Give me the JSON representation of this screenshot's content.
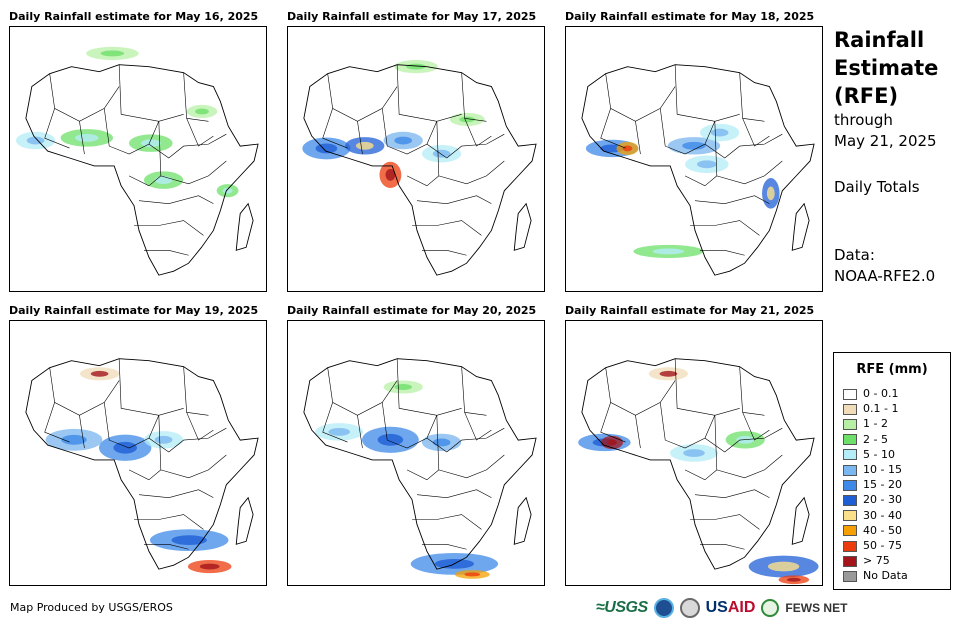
{
  "panels": [
    {
      "title": "Daily Rainfall estimate for May 16, 2025"
    },
    {
      "title": "Daily Rainfall estimate for May 17, 2025"
    },
    {
      "title": "Daily Rainfall estimate for May 18, 2025"
    },
    {
      "title": "Daily Rainfall estimate for May 19, 2025"
    },
    {
      "title": "Daily Rainfall estimate for May 20, 2025"
    },
    {
      "title": "Daily Rainfall estimate for May 21, 2025"
    }
  ],
  "side": {
    "title_line1": "Rainfall",
    "title_line2": "Estimate",
    "title_line3": "(RFE)",
    "through": "through",
    "date": "May 21, 2025",
    "totals": "Daily Totals",
    "data_label": "Data:",
    "data_source": "NOAA-RFE2.0"
  },
  "legend": {
    "title": "RFE (mm)",
    "items": [
      {
        "label": "0 - 0.1",
        "color": "#ffffff"
      },
      {
        "label": "0.1 - 1",
        "color": "#f0dcb8"
      },
      {
        "label": "1 - 2",
        "color": "#b7f0a5"
      },
      {
        "label": "2 - 5",
        "color": "#6ee06a"
      },
      {
        "label": "5 - 10",
        "color": "#b4ecf7"
      },
      {
        "label": "10 - 15",
        "color": "#7ab6ef"
      },
      {
        "label": "15 - 20",
        "color": "#3d8ae8"
      },
      {
        "label": "20 - 30",
        "color": "#1f5fd6"
      },
      {
        "label": "30 - 40",
        "color": "#fbe08c"
      },
      {
        "label": "40 - 50",
        "color": "#f5a000"
      },
      {
        "label": "50 - 75",
        "color": "#ec3b0c"
      },
      {
        "label": "> 75",
        "color": "#a3151a"
      },
      {
        "label": "No Data",
        "color": "#999999"
      }
    ]
  },
  "footer": {
    "credit": "Map Produced by USGS/EROS",
    "logo_usgs": "≈USGS",
    "logo_usaid_a": "US",
    "logo_usaid_b": "AID",
    "logo_fews": "FEWS NET"
  }
}
